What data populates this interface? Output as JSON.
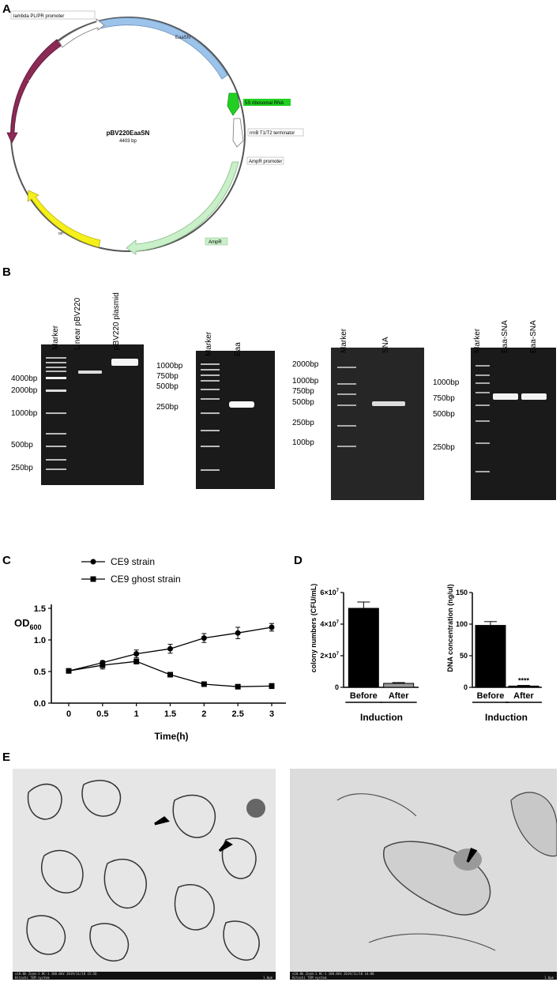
{
  "panels": {
    "a": "A",
    "b": "B",
    "c": "C",
    "d": "D",
    "e": "E"
  },
  "plasmid": {
    "name": "pBV220EaaSN",
    "size": "4403 bp",
    "features": {
      "promoter1": "lambda PL/PR promoter",
      "eaasn": "EaaSN",
      "rrna": "5S ribosomal RNA",
      "terminator": "rrnB T1/T2 terminator",
      "amp_promoter": "AmpR promoter",
      "ampr": "AmpR",
      "ori": "ori",
      "repressor": "λ repressor (ts)"
    },
    "colors": {
      "eaasn": "#9cc3ea",
      "rrna": "#22d022",
      "ampr": "#c9f0c9",
      "ori": "#f5f01a",
      "repressor": "#8b2a55"
    }
  },
  "gels": {
    "gel1": {
      "lanes": [
        "Marker",
        "Linear pBV220",
        "pBV220 plasmid"
      ],
      "ladder": [
        "4000bp",
        "2000bp",
        "1000bp",
        "500bp",
        "250bp"
      ]
    },
    "gel2": {
      "lanes": [
        "Marker",
        "Eaa"
      ],
      "ladder": [
        "1000bp",
        "750bp",
        "500bp",
        "250bp"
      ]
    },
    "gel3": {
      "lanes": [
        "Marker",
        "SNA"
      ],
      "ladder": [
        "2000bp",
        "1000bp",
        "750bp",
        "500bp",
        "250bp",
        "100bp"
      ]
    },
    "gel4": {
      "lanes": [
        "Marker",
        "Eaa-SNA",
        "Eaa-SNA"
      ],
      "ladder": [
        "1000bp",
        "750bp",
        "500bp",
        "250bp"
      ]
    }
  },
  "chart_data": [
    {
      "type": "line",
      "xlabel": "Time(h)",
      "ylabel": "OD600",
      "ylabel_main": "OD",
      "ylabel_sub": "600",
      "x": [
        0,
        0.5,
        1,
        1.5,
        2,
        2.5,
        3
      ],
      "xticks": [
        "0",
        "0.5",
        "1",
        "1.5",
        "2",
        "2.5",
        "3"
      ],
      "yticks": [
        "0.0",
        "0.5",
        "1.0",
        "1.5"
      ],
      "ylim": [
        0,
        1.5
      ],
      "series": [
        {
          "name": "CE9 strain",
          "marker": "circle",
          "values": [
            0.51,
            0.64,
            0.78,
            0.86,
            1.03,
            1.11,
            1.2
          ],
          "err": [
            0.02,
            0.03,
            0.06,
            0.07,
            0.07,
            0.09,
            0.06
          ]
        },
        {
          "name": "CE9 ghost strain",
          "marker": "square",
          "values": [
            0.51,
            0.6,
            0.66,
            0.45,
            0.3,
            0.26,
            0.27
          ],
          "err": [
            0.02,
            0.06,
            0.04,
            0.02,
            0.02,
            0.02,
            0.04
          ]
        }
      ]
    },
    {
      "type": "bar",
      "categories": [
        "Before",
        "After"
      ],
      "values": [
        50000000,
        2500000
      ],
      "err": [
        4000000,
        500000
      ],
      "ylabel": "colony numbers (CFU/mL)",
      "xlabel": "Induction",
      "ylim": [
        0,
        60000000
      ],
      "yticks": [
        "0",
        "2×10",
        "4×10",
        "6×10"
      ],
      "ytick_exp": "7",
      "colors": [
        "#000000",
        "#9a9a9a"
      ]
    },
    {
      "type": "bar",
      "categories": [
        "Before",
        "After"
      ],
      "values": [
        98,
        2
      ],
      "err": [
        6,
        1
      ],
      "ylabel": "DNA concentration (ng/ul)",
      "xlabel": "Induction",
      "ylim": [
        0,
        150
      ],
      "yticks": [
        "0",
        "50",
        "100",
        "150"
      ],
      "significance": "****"
    }
  ],
  "em": {
    "left_caption": "x10.0k Zoom-1 HC-1 100.0kV 2019/11/18 15:56",
    "left_caption2": "Hitachi TEM system",
    "left_scale": "1.0μm",
    "right_caption": "x10.0k Zoom-1 HC-1 100.0kV 2019/11/18 14:00",
    "right_caption2": "Hitachi TEM system",
    "right_scale": "1.0μm"
  }
}
